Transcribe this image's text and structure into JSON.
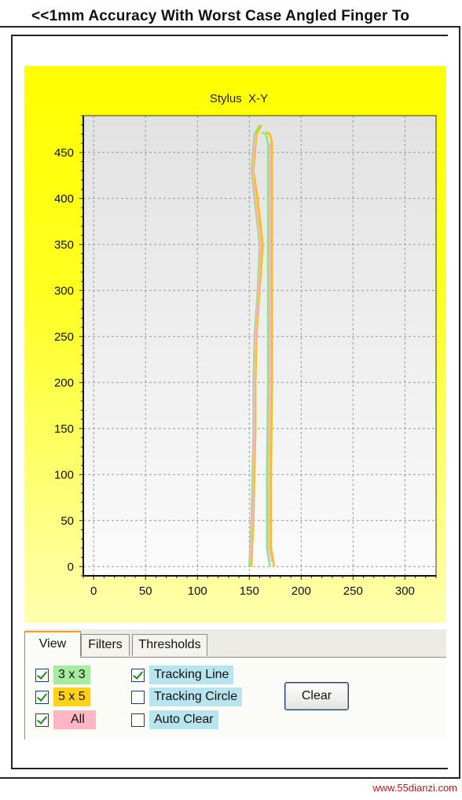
{
  "window_title": "<<1mm Accuracy With Worst Case Angled Finger To",
  "chart_data": {
    "type": "line",
    "title": "Stylus  X-Y",
    "xlabel": "",
    "ylabel": "",
    "xlim": [
      -10,
      330
    ],
    "ylim": [
      -10,
      490
    ],
    "x_ticks": [
      0,
      50,
      100,
      150,
      200,
      250,
      300
    ],
    "y_ticks": [
      0,
      50,
      100,
      150,
      200,
      250,
      300,
      350,
      400,
      450
    ],
    "grid": true,
    "series": [
      {
        "name": "3 x 3",
        "color": "#88e888",
        "points": [
          [
            150,
            0
          ],
          [
            152,
            50
          ],
          [
            153,
            100
          ],
          [
            154,
            150
          ],
          [
            154,
            200
          ],
          [
            155,
            250
          ],
          [
            158,
            300
          ],
          [
            160,
            350
          ],
          [
            155,
            400
          ],
          [
            152,
            430
          ],
          [
            155,
            470
          ],
          [
            160,
            480
          ]
        ],
        "points2": [
          [
            170,
            0
          ],
          [
            167,
            20
          ],
          [
            167,
            100
          ],
          [
            168,
            200
          ],
          [
            168,
            300
          ],
          [
            168,
            400
          ],
          [
            168,
            460
          ],
          [
            166,
            470
          ],
          [
            162,
            472
          ]
        ]
      },
      {
        "name": "5 x 5",
        "color": "#f5c400",
        "points": [
          [
            152,
            0
          ],
          [
            154,
            50
          ],
          [
            155,
            100
          ],
          [
            156,
            150
          ],
          [
            156,
            200
          ],
          [
            157,
            250
          ],
          [
            160,
            300
          ],
          [
            163,
            350
          ],
          [
            158,
            400
          ],
          [
            154,
            430
          ],
          [
            157,
            470
          ],
          [
            162,
            480
          ]
        ],
        "points2": [
          [
            174,
            0
          ],
          [
            171,
            20
          ],
          [
            171,
            100
          ],
          [
            172,
            200
          ],
          [
            172,
            300
          ],
          [
            172,
            400
          ],
          [
            172,
            460
          ],
          [
            170,
            470
          ],
          [
            166,
            472
          ]
        ]
      },
      {
        "name": "All",
        "color": "#ffb0c0",
        "points": [
          [
            151,
            5
          ],
          [
            153,
            50
          ],
          [
            154,
            100
          ],
          [
            155,
            150
          ],
          [
            155,
            200
          ],
          [
            156,
            250
          ],
          [
            159,
            300
          ],
          [
            161,
            350
          ],
          [
            156,
            400
          ],
          [
            153,
            430
          ],
          [
            156,
            470
          ]
        ],
        "points2": [
          [
            172,
            5
          ],
          [
            169,
            20
          ],
          [
            169,
            100
          ],
          [
            170,
            200
          ],
          [
            170,
            300
          ],
          [
            170,
            400
          ],
          [
            170,
            460
          ]
        ]
      }
    ]
  },
  "tabs": [
    "View",
    "Filters",
    "Thresholds"
  ],
  "options": {
    "opt_3x3": {
      "label": "3 x 3",
      "checked": true,
      "color": "#a8eba0"
    },
    "opt_5x5": {
      "label": "5 x 5",
      "checked": true,
      "color": "#ffd21a"
    },
    "opt_all": {
      "label": "All",
      "checked": true,
      "color": "#ffb6c4"
    },
    "tracking_line": {
      "label": "Tracking Line",
      "checked": true,
      "color": "#b8e4ee"
    },
    "tracking_circle": {
      "label": "Tracking Circle",
      "checked": false,
      "color": "#b8e4ee"
    },
    "auto_clear": {
      "label": "Auto Clear",
      "checked": false,
      "color": "#b8e4ee"
    }
  },
  "clear_label": "Clear",
  "watermark": "www.55dianzi.com"
}
